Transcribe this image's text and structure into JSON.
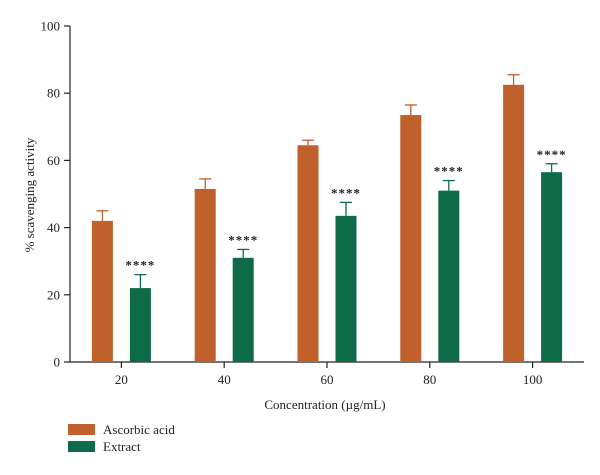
{
  "chart_data": {
    "type": "bar",
    "xlabel": "Concentration (µg/mL)",
    "ylabel": "% scavenging activity",
    "ylim": [
      0,
      100
    ],
    "yticks": [
      0,
      20,
      40,
      60,
      80,
      100
    ],
    "categories": [
      "20",
      "40",
      "60",
      "80",
      "100"
    ],
    "series": [
      {
        "name": "Ascorbic acid",
        "color": "#C0602A",
        "values": [
          42,
          51.5,
          64.5,
          73.5,
          82.5
        ],
        "errors": [
          3.0,
          3.0,
          1.5,
          3.0,
          3.0
        ],
        "annotations": [
          "",
          "",
          "",
          "",
          ""
        ]
      },
      {
        "name": "Extract",
        "color": "#0E6B47",
        "values": [
          22,
          31,
          43.5,
          51,
          56.5
        ],
        "errors": [
          4.0,
          2.5,
          4.0,
          3.0,
          2.5
        ],
        "annotations": [
          "****",
          "****",
          "****",
          "****",
          "****"
        ]
      }
    ],
    "legend_position": "bottom-left",
    "grid": false
  }
}
